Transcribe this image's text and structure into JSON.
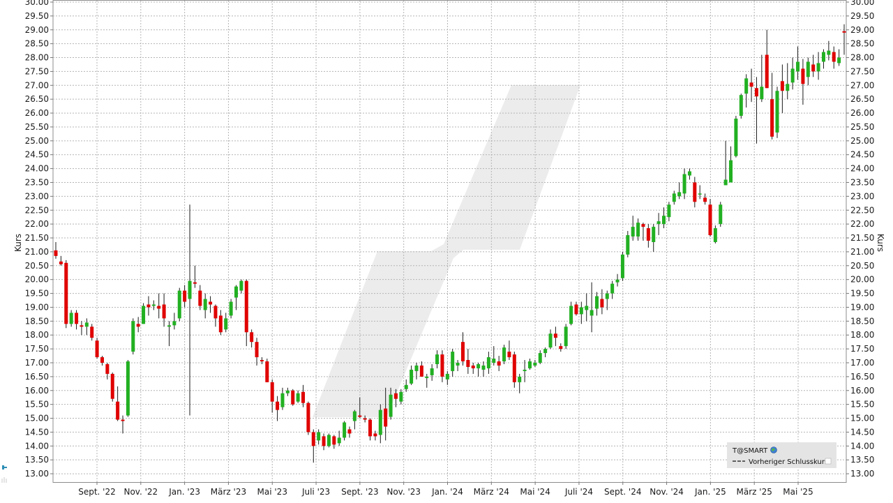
{
  "chart_data": {
    "type": "candlestick",
    "ylabel": "Kurs",
    "y_right_label": "Kurs",
    "ylim": [
      12.7,
      30.05
    ],
    "yticks": [
      "13.00",
      "13.50",
      "14.00",
      "14.50",
      "15.00",
      "15.50",
      "16.00",
      "16.50",
      "17.00",
      "17.50",
      "18.00",
      "18.50",
      "19.00",
      "19.50",
      "20.00",
      "20.50",
      "21.00",
      "21.50",
      "22.00",
      "22.50",
      "23.00",
      "23.50",
      "24.00",
      "24.50",
      "25.00",
      "25.50",
      "26.00",
      "26.50",
      "27.00",
      "27.50",
      "28.00",
      "28.50",
      "29.00",
      "29.50",
      "30.00"
    ],
    "xticks": [
      "Sept. '22",
      "Nov. '22",
      "Jan. '23",
      "März '23",
      "Mai '23",
      "Juli '23",
      "Sept. '23",
      "Nov. '23",
      "Jan. '24",
      "März '24",
      "Mai '24",
      "Juli '24",
      "Sept. '24",
      "Nov. '24",
      "Jan. '25",
      "März '25",
      "Mai '25"
    ],
    "grid": true,
    "up_color": "#22b022",
    "down_color": "#e00000",
    "legend": {
      "placement": "bottom-right",
      "symbol": "T@SMART",
      "previous_close_label": "Vorheriger Schlusskurs"
    },
    "candles": [
      {
        "o": 21.05,
        "h": 21.35,
        "l": 20.75,
        "c": 20.85
      },
      {
        "o": 20.65,
        "h": 20.85,
        "l": 20.5,
        "c": 20.55
      },
      {
        "o": 20.6,
        "h": 20.7,
        "l": 18.25,
        "c": 18.4
      },
      {
        "o": 18.4,
        "h": 18.9,
        "l": 18.3,
        "c": 18.8
      },
      {
        "o": 18.8,
        "h": 18.9,
        "l": 18.2,
        "c": 18.4
      },
      {
        "o": 18.35,
        "h": 18.5,
        "l": 18.0,
        "c": 18.3
      },
      {
        "o": 18.3,
        "h": 18.6,
        "l": 18.0,
        "c": 18.45
      },
      {
        "o": 18.3,
        "h": 18.4,
        "l": 17.8,
        "c": 17.9
      },
      {
        "o": 17.8,
        "h": 17.9,
        "l": 17.15,
        "c": 17.2
      },
      {
        "o": 17.2,
        "h": 17.25,
        "l": 16.9,
        "c": 17.0
      },
      {
        "o": 16.95,
        "h": 17.0,
        "l": 16.4,
        "c": 16.6
      },
      {
        "o": 16.6,
        "h": 16.65,
        "l": 15.6,
        "c": 15.7
      },
      {
        "o": 15.6,
        "h": 16.15,
        "l": 14.9,
        "c": 14.95
      },
      {
        "o": 14.95,
        "h": 15.1,
        "l": 14.45,
        "c": 14.9
      },
      {
        "o": 15.1,
        "h": 17.1,
        "l": 15.05,
        "c": 17.05
      },
      {
        "o": 17.4,
        "h": 18.6,
        "l": 17.3,
        "c": 18.5
      },
      {
        "o": 18.4,
        "h": 18.65,
        "l": 18.1,
        "c": 18.3
      },
      {
        "o": 18.4,
        "h": 19.15,
        "l": 18.4,
        "c": 19.05
      },
      {
        "o": 19.1,
        "h": 19.4,
        "l": 18.7,
        "c": 19.0
      },
      {
        "o": 19.05,
        "h": 19.25,
        "l": 18.9,
        "c": 19.1
      },
      {
        "o": 19.05,
        "h": 19.5,
        "l": 18.6,
        "c": 18.95
      },
      {
        "o": 19.1,
        "h": 19.5,
        "l": 18.3,
        "c": 18.6
      },
      {
        "o": 18.3,
        "h": 18.5,
        "l": 17.6,
        "c": 18.35
      },
      {
        "o": 18.35,
        "h": 18.8,
        "l": 18.2,
        "c": 18.5
      },
      {
        "o": 18.6,
        "h": 19.7,
        "l": 18.5,
        "c": 19.6
      },
      {
        "o": 19.6,
        "h": 19.8,
        "l": 19.0,
        "c": 19.2
      },
      {
        "o": 19.3,
        "h": 22.7,
        "l": 15.1,
        "c": 19.95
      },
      {
        "o": 19.9,
        "h": 20.5,
        "l": 19.7,
        "c": 19.85
      },
      {
        "o": 19.6,
        "h": 19.8,
        "l": 18.9,
        "c": 19.05
      },
      {
        "o": 18.9,
        "h": 19.5,
        "l": 18.6,
        "c": 19.3
      },
      {
        "o": 19.2,
        "h": 19.4,
        "l": 18.8,
        "c": 19.1
      },
      {
        "o": 19.05,
        "h": 19.1,
        "l": 18.3,
        "c": 18.6
      },
      {
        "o": 18.7,
        "h": 18.9,
        "l": 18.0,
        "c": 18.1
      },
      {
        "o": 18.2,
        "h": 18.8,
        "l": 18.1,
        "c": 18.6
      },
      {
        "o": 18.7,
        "h": 19.3,
        "l": 18.6,
        "c": 19.2
      },
      {
        "o": 19.35,
        "h": 19.8,
        "l": 18.9,
        "c": 19.75
      },
      {
        "o": 19.6,
        "h": 20.0,
        "l": 19.5,
        "c": 19.95
      },
      {
        "o": 19.95,
        "h": 20.0,
        "l": 17.6,
        "c": 18.1
      },
      {
        "o": 18.1,
        "h": 18.2,
        "l": 17.55,
        "c": 17.75
      },
      {
        "o": 17.75,
        "h": 17.9,
        "l": 16.9,
        "c": 17.2
      },
      {
        "o": 17.1,
        "h": 17.2,
        "l": 16.95,
        "c": 17.05
      },
      {
        "o": 17.05,
        "h": 17.15,
        "l": 16.3,
        "c": 16.3
      },
      {
        "o": 16.3,
        "h": 16.4,
        "l": 15.2,
        "c": 15.6
      },
      {
        "o": 15.6,
        "h": 15.8,
        "l": 14.9,
        "c": 15.3
      },
      {
        "o": 15.4,
        "h": 16.1,
        "l": 15.3,
        "c": 15.9
      },
      {
        "o": 15.9,
        "h": 16.1,
        "l": 15.8,
        "c": 16.0
      },
      {
        "o": 16.0,
        "h": 16.05,
        "l": 15.45,
        "c": 15.5
      },
      {
        "o": 15.6,
        "h": 16.0,
        "l": 15.55,
        "c": 15.9
      },
      {
        "o": 15.95,
        "h": 16.2,
        "l": 15.4,
        "c": 15.55
      },
      {
        "o": 15.55,
        "h": 15.6,
        "l": 14.4,
        "c": 14.5
      },
      {
        "o": 14.5,
        "h": 14.6,
        "l": 13.4,
        "c": 14.0
      },
      {
        "o": 14.2,
        "h": 14.6,
        "l": 14.05,
        "c": 14.5
      },
      {
        "o": 14.35,
        "h": 14.45,
        "l": 13.85,
        "c": 14.0
      },
      {
        "o": 14.0,
        "h": 14.45,
        "l": 13.95,
        "c": 14.4
      },
      {
        "o": 14.35,
        "h": 14.4,
        "l": 13.9,
        "c": 14.05
      },
      {
        "o": 14.1,
        "h": 14.55,
        "l": 14.0,
        "c": 14.3
      },
      {
        "o": 14.3,
        "h": 14.9,
        "l": 14.2,
        "c": 14.85
      },
      {
        "o": 14.6,
        "h": 14.7,
        "l": 14.3,
        "c": 14.45
      },
      {
        "o": 14.9,
        "h": 15.3,
        "l": 14.6,
        "c": 15.25
      },
      {
        "o": 15.1,
        "h": 15.75,
        "l": 15.0,
        "c": 15.05
      },
      {
        "o": 15.0,
        "h": 15.1,
        "l": 14.85,
        "c": 14.95
      },
      {
        "o": 14.95,
        "h": 15.0,
        "l": 14.2,
        "c": 14.35
      },
      {
        "o": 14.45,
        "h": 14.55,
        "l": 14.2,
        "c": 14.35
      },
      {
        "o": 14.4,
        "h": 15.5,
        "l": 14.1,
        "c": 15.3
      },
      {
        "o": 15.35,
        "h": 16.1,
        "l": 14.2,
        "c": 14.7
      },
      {
        "o": 15.05,
        "h": 16.1,
        "l": 14.95,
        "c": 15.85
      },
      {
        "o": 15.9,
        "h": 16.05,
        "l": 15.4,
        "c": 15.7
      },
      {
        "o": 15.6,
        "h": 16.05,
        "l": 15.5,
        "c": 15.95
      },
      {
        "o": 16.05,
        "h": 16.4,
        "l": 15.95,
        "c": 16.2
      },
      {
        "o": 16.25,
        "h": 16.9,
        "l": 16.2,
        "c": 16.75
      },
      {
        "o": 16.7,
        "h": 17.0,
        "l": 16.4,
        "c": 16.9
      },
      {
        "o": 16.9,
        "h": 17.05,
        "l": 16.5,
        "c": 16.5
      },
      {
        "o": 16.45,
        "h": 16.6,
        "l": 16.1,
        "c": 16.5
      },
      {
        "o": 16.55,
        "h": 16.95,
        "l": 16.35,
        "c": 16.8
      },
      {
        "o": 16.95,
        "h": 17.45,
        "l": 16.8,
        "c": 17.3
      },
      {
        "o": 17.3,
        "h": 17.45,
        "l": 16.3,
        "c": 16.5
      },
      {
        "o": 16.4,
        "h": 16.7,
        "l": 16.2,
        "c": 16.6
      },
      {
        "o": 16.7,
        "h": 17.5,
        "l": 16.5,
        "c": 17.4
      },
      {
        "o": 16.9,
        "h": 17.1,
        "l": 16.7,
        "c": 17.0
      },
      {
        "o": 17.75,
        "h": 18.1,
        "l": 16.9,
        "c": 17.05
      },
      {
        "o": 17.1,
        "h": 17.5,
        "l": 16.6,
        "c": 16.85
      },
      {
        "o": 16.9,
        "h": 17.0,
        "l": 16.6,
        "c": 16.8
      },
      {
        "o": 16.8,
        "h": 17.0,
        "l": 16.5,
        "c": 16.95
      },
      {
        "o": 16.75,
        "h": 17.05,
        "l": 16.5,
        "c": 16.9
      },
      {
        "o": 16.8,
        "h": 17.4,
        "l": 16.6,
        "c": 17.2
      },
      {
        "o": 17.0,
        "h": 17.6,
        "l": 16.9,
        "c": 17.15
      },
      {
        "o": 17.05,
        "h": 17.25,
        "l": 16.7,
        "c": 16.9
      },
      {
        "o": 17.05,
        "h": 17.65,
        "l": 16.95,
        "c": 17.55
      },
      {
        "o": 17.4,
        "h": 17.8,
        "l": 17.1,
        "c": 17.2
      },
      {
        "o": 17.3,
        "h": 17.4,
        "l": 16.1,
        "c": 16.3
      },
      {
        "o": 16.3,
        "h": 16.6,
        "l": 15.9,
        "c": 16.5
      },
      {
        "o": 16.7,
        "h": 17.1,
        "l": 16.3,
        "c": 16.75
      },
      {
        "o": 16.8,
        "h": 17.15,
        "l": 16.75,
        "c": 17.05
      },
      {
        "o": 16.9,
        "h": 17.1,
        "l": 16.85,
        "c": 17.0
      },
      {
        "o": 17.0,
        "h": 17.45,
        "l": 16.95,
        "c": 17.35
      },
      {
        "o": 17.35,
        "h": 17.55,
        "l": 17.2,
        "c": 17.5
      },
      {
        "o": 17.55,
        "h": 18.2,
        "l": 17.5,
        "c": 18.05
      },
      {
        "o": 18.05,
        "h": 18.3,
        "l": 17.6,
        "c": 17.9
      },
      {
        "o": 17.6,
        "h": 17.7,
        "l": 17.4,
        "c": 17.5
      },
      {
        "o": 17.6,
        "h": 18.4,
        "l": 17.5,
        "c": 18.3
      },
      {
        "o": 18.4,
        "h": 19.2,
        "l": 18.35,
        "c": 19.05
      },
      {
        "o": 19.1,
        "h": 19.2,
        "l": 18.7,
        "c": 18.75
      },
      {
        "o": 18.75,
        "h": 19.2,
        "l": 18.4,
        "c": 19.0
      },
      {
        "o": 18.9,
        "h": 19.5,
        "l": 18.5,
        "c": 19.05
      },
      {
        "o": 18.7,
        "h": 19.9,
        "l": 18.1,
        "c": 18.9
      },
      {
        "o": 18.95,
        "h": 19.55,
        "l": 18.7,
        "c": 19.4
      },
      {
        "o": 19.3,
        "h": 19.65,
        "l": 18.75,
        "c": 19.0
      },
      {
        "o": 19.3,
        "h": 19.6,
        "l": 18.9,
        "c": 19.5
      },
      {
        "o": 19.5,
        "h": 19.95,
        "l": 19.3,
        "c": 19.85
      },
      {
        "o": 19.9,
        "h": 20.2,
        "l": 19.75,
        "c": 20.0
      },
      {
        "o": 20.05,
        "h": 21.0,
        "l": 19.95,
        "c": 20.9
      },
      {
        "o": 20.9,
        "h": 21.75,
        "l": 20.8,
        "c": 21.6
      },
      {
        "o": 21.55,
        "h": 22.3,
        "l": 21.4,
        "c": 21.9
      },
      {
        "o": 21.55,
        "h": 22.2,
        "l": 21.4,
        "c": 22.05
      },
      {
        "o": 22.0,
        "h": 22.05,
        "l": 21.4,
        "c": 21.9
      },
      {
        "o": 21.85,
        "h": 22.0,
        "l": 21.15,
        "c": 21.4
      },
      {
        "o": 21.35,
        "h": 22.0,
        "l": 21.0,
        "c": 21.9
      },
      {
        "o": 22.0,
        "h": 22.4,
        "l": 21.6,
        "c": 22.1
      },
      {
        "o": 22.0,
        "h": 22.6,
        "l": 21.85,
        "c": 22.3
      },
      {
        "o": 22.25,
        "h": 22.8,
        "l": 22.1,
        "c": 22.7
      },
      {
        "o": 22.8,
        "h": 23.2,
        "l": 22.7,
        "c": 23.1
      },
      {
        "o": 23.0,
        "h": 23.5,
        "l": 22.9,
        "c": 23.15
      },
      {
        "o": 23.1,
        "h": 24.0,
        "l": 22.9,
        "c": 23.8
      },
      {
        "o": 23.75,
        "h": 24.0,
        "l": 23.6,
        "c": 23.9
      },
      {
        "o": 23.5,
        "h": 23.7,
        "l": 22.6,
        "c": 22.8
      },
      {
        "o": 23.1,
        "h": 23.4,
        "l": 22.9,
        "c": 23.1
      },
      {
        "o": 22.95,
        "h": 23.1,
        "l": 22.7,
        "c": 22.8
      },
      {
        "o": 22.7,
        "h": 22.9,
        "l": 21.55,
        "c": 21.6
      },
      {
        "o": 21.35,
        "h": 21.95,
        "l": 21.3,
        "c": 21.85
      },
      {
        "o": 22.0,
        "h": 22.8,
        "l": 21.9,
        "c": 22.7
      },
      {
        "o": 23.4,
        "h": 25.0,
        "l": 23.4,
        "c": 23.6
      },
      {
        "o": 23.5,
        "h": 24.8,
        "l": 23.5,
        "c": 24.3
      },
      {
        "o": 24.45,
        "h": 25.9,
        "l": 24.4,
        "c": 25.8
      },
      {
        "o": 25.9,
        "h": 26.7,
        "l": 25.8,
        "c": 26.65
      },
      {
        "o": 26.7,
        "h": 27.4,
        "l": 26.2,
        "c": 27.25
      },
      {
        "o": 27.1,
        "h": 27.6,
        "l": 26.4,
        "c": 26.95
      },
      {
        "o": 26.9,
        "h": 27.3,
        "l": 24.9,
        "c": 26.6
      },
      {
        "o": 26.5,
        "h": 28.1,
        "l": 26.4,
        "c": 26.95
      },
      {
        "o": 28.1,
        "h": 29.0,
        "l": 26.9,
        "c": 26.9
      },
      {
        "o": 26.5,
        "h": 27.45,
        "l": 25.05,
        "c": 25.15
      },
      {
        "o": 25.3,
        "h": 26.95,
        "l": 25.1,
        "c": 26.8
      },
      {
        "o": 27.15,
        "h": 27.75,
        "l": 26.0,
        "c": 26.8
      },
      {
        "o": 26.8,
        "h": 27.8,
        "l": 26.5,
        "c": 27.05
      },
      {
        "o": 27.1,
        "h": 28.0,
        "l": 26.85,
        "c": 27.6
      },
      {
        "o": 27.5,
        "h": 28.4,
        "l": 27.2,
        "c": 27.85
      },
      {
        "o": 27.6,
        "h": 27.95,
        "l": 26.3,
        "c": 27.05
      },
      {
        "o": 27.3,
        "h": 28.0,
        "l": 27.0,
        "c": 27.85
      },
      {
        "o": 27.75,
        "h": 28.1,
        "l": 27.3,
        "c": 27.5
      },
      {
        "o": 27.5,
        "h": 28.2,
        "l": 27.2,
        "c": 27.8
      },
      {
        "o": 27.85,
        "h": 28.3,
        "l": 27.6,
        "c": 28.2
      },
      {
        "o": 28.1,
        "h": 28.6,
        "l": 27.9,
        "c": 28.25
      },
      {
        "o": 28.2,
        "h": 28.4,
        "l": 27.6,
        "c": 27.85
      },
      {
        "o": 27.8,
        "h": 28.3,
        "l": 27.7,
        "c": 28.0
      },
      {
        "o": 28.95,
        "h": 29.2,
        "l": 28.1,
        "c": 28.9
      }
    ]
  }
}
